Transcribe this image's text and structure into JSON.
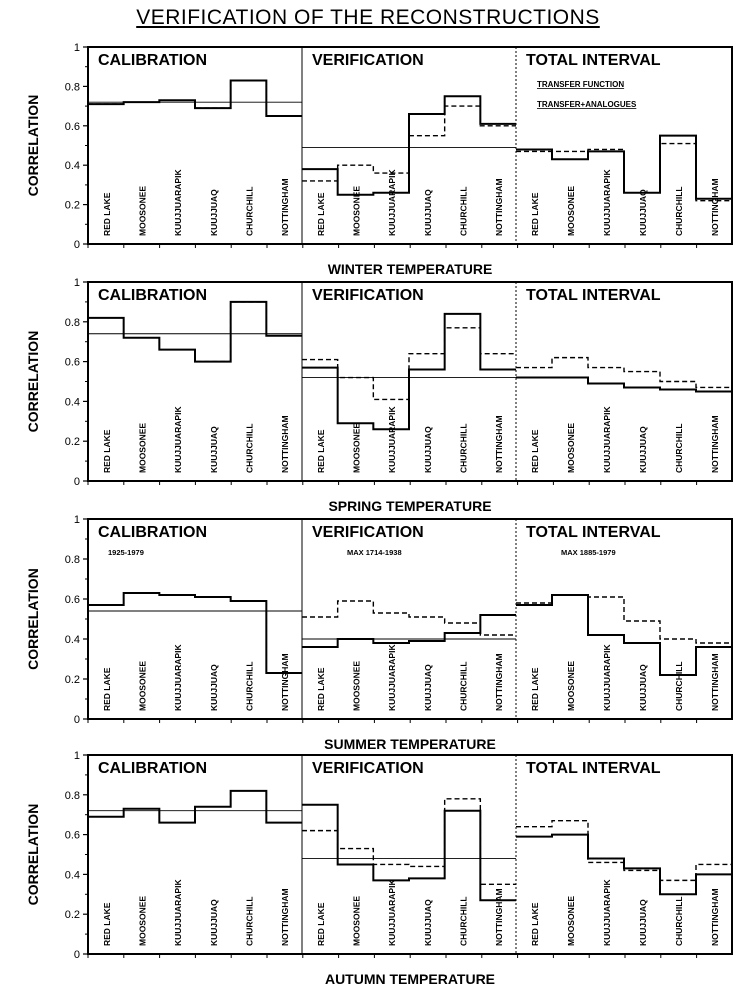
{
  "title": "VERIFICATION OF THE RECONSTRUCTIONS",
  "ylabel": "CORRELATION",
  "section_labels": [
    "CALIBRATION",
    "VERIFICATION",
    "TOTAL INTERVAL"
  ],
  "stations": [
    "RED LAKE",
    "MOOSONEE",
    "KUUJJUARAPIK",
    "KUUJJUAQ",
    "CHURCHILL",
    "NOTTINGHAM"
  ],
  "y_ticks": [
    "0",
    "0.2",
    "0.4",
    "0.6",
    "0.8",
    "1"
  ],
  "legend": {
    "solid": "TRANSFER FUNCTION",
    "dashed": "TRANSFER+ANALOGUES"
  },
  "chart_data": [
    {
      "type": "step",
      "title": "WINTER TEMPERATURE",
      "ylim": [
        0,
        1
      ],
      "notes": [
        "",
        "",
        ""
      ],
      "series": [
        {
          "name": "TRANSFER FUNCTION",
          "values": [
            [
              0.71,
              0.72,
              0.73,
              0.69,
              0.83,
              0.65
            ],
            [
              0.38,
              0.25,
              0.26,
              0.66,
              0.75,
              0.61
            ],
            [
              0.48,
              0.43,
              0.47,
              0.26,
              0.55,
              0.23
            ]
          ]
        },
        {
          "name": "TRANSFER+ANALOGUES",
          "values": [
            [
              0.71,
              0.72,
              0.73,
              0.69,
              0.83,
              0.65
            ],
            [
              0.32,
              0.4,
              0.36,
              0.55,
              0.7,
              0.6
            ],
            [
              0.47,
              0.47,
              0.48,
              0.26,
              0.51,
              0.22
            ]
          ]
        }
      ],
      "ref_lines": [
        0.72,
        0.49,
        null
      ]
    },
    {
      "type": "step",
      "title": "SPRING TEMPERATURE",
      "ylim": [
        0,
        1
      ],
      "notes": [
        "",
        "",
        ""
      ],
      "series": [
        {
          "name": "TRANSFER FUNCTION",
          "values": [
            [
              0.82,
              0.72,
              0.66,
              0.6,
              0.9,
              0.73
            ],
            [
              0.57,
              0.29,
              0.26,
              0.56,
              0.84,
              0.56
            ],
            [
              0.52,
              0.52,
              0.49,
              0.47,
              0.46,
              0.45
            ]
          ]
        },
        {
          "name": "TRANSFER+ANALOGUES",
          "values": [
            [
              0.82,
              0.72,
              0.66,
              0.6,
              0.9,
              0.73
            ],
            [
              0.61,
              0.52,
              0.41,
              0.64,
              0.77,
              0.64
            ],
            [
              0.57,
              0.62,
              0.57,
              0.55,
              0.5,
              0.47
            ]
          ]
        }
      ],
      "ref_lines": [
        0.74,
        0.52,
        null
      ]
    },
    {
      "type": "step",
      "title": "SUMMER TEMPERATURE",
      "ylim": [
        0,
        1
      ],
      "notes": [
        "1925-1979",
        "MAX 1714-1938",
        "MAX 1885-1979"
      ],
      "series": [
        {
          "name": "TRANSFER FUNCTION",
          "values": [
            [
              0.57,
              0.63,
              0.62,
              0.61,
              0.59,
              0.23
            ],
            [
              0.36,
              0.4,
              0.38,
              0.39,
              0.43,
              0.52
            ],
            [
              0.57,
              0.62,
              0.42,
              0.38,
              0.22,
              0.36
            ]
          ]
        },
        {
          "name": "TRANSFER+ANALOGUES",
          "values": [
            [
              0.57,
              0.63,
              0.62,
              0.61,
              0.59,
              0.23
            ],
            [
              0.51,
              0.59,
              0.53,
              0.51,
              0.48,
              0.42
            ],
            [
              0.58,
              0.62,
              0.61,
              0.49,
              0.4,
              0.38
            ]
          ]
        }
      ],
      "ref_lines": [
        0.54,
        0.4,
        null
      ]
    },
    {
      "type": "step",
      "title": "AUTUMN TEMPERATURE",
      "ylim": [
        0,
        1
      ],
      "notes": [
        "",
        "",
        ""
      ],
      "series": [
        {
          "name": "TRANSFER FUNCTION",
          "values": [
            [
              0.69,
              0.73,
              0.66,
              0.74,
              0.82,
              0.66
            ],
            [
              0.75,
              0.45,
              0.37,
              0.38,
              0.72,
              0.27
            ],
            [
              0.59,
              0.6,
              0.48,
              0.43,
              0.3,
              0.4
            ]
          ]
        },
        {
          "name": "TRANSFER+ANALOGUES",
          "values": [
            [
              0.69,
              0.73,
              0.66,
              0.74,
              0.82,
              0.66
            ],
            [
              0.62,
              0.53,
              0.45,
              0.44,
              0.78,
              0.35
            ],
            [
              0.64,
              0.67,
              0.46,
              0.42,
              0.37,
              0.45
            ]
          ]
        }
      ],
      "ref_lines": [
        0.72,
        0.48,
        null
      ]
    }
  ]
}
